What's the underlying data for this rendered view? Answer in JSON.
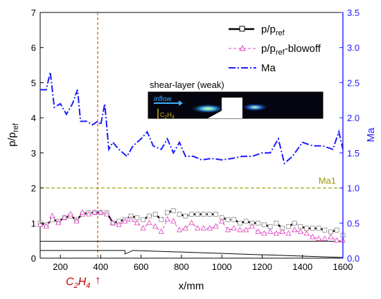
{
  "chart_data": {
    "type": "line",
    "xlabel": "x/mm",
    "ylabel_left": "p/p_ref",
    "ylabel_right": "Ma",
    "xlim": [
      100,
      1600
    ],
    "ylim_left": [
      0,
      7
    ],
    "ylim_right": [
      0,
      3.5
    ],
    "xticks": [
      200,
      400,
      600,
      800,
      1000,
      1200,
      1400,
      1600
    ],
    "yticks_left": [
      0,
      1,
      2,
      3,
      4,
      5,
      6,
      7
    ],
    "yticks_right": [
      0.0,
      0.5,
      1.0,
      1.5,
      2.0,
      2.5,
      3.0,
      3.5
    ],
    "xtick_labels": [
      "200",
      "400",
      "600",
      "800",
      "1000",
      "1200",
      "1400",
      "1600"
    ],
    "yleft_labels": [
      "0",
      "1",
      "2",
      "3",
      "4",
      "5",
      "6",
      "7"
    ],
    "yright_labels": [
      "0.0",
      "0.5",
      "1.0",
      "1.5",
      "2.0",
      "2.5",
      "3.0",
      "3.5"
    ],
    "legend": {
      "placement": "top-right",
      "entries": [
        {
          "key": "p",
          "main": "p/p",
          "sub": "ref",
          "tail": "",
          "color": "#000000"
        },
        {
          "key": "pb",
          "main": "p/p",
          "sub": "ref",
          "tail": "-blowoff",
          "color": "#e040c0"
        },
        {
          "key": "ma",
          "main": "Ma",
          "sub": "",
          "tail": "",
          "color": "#1a1aff"
        }
      ]
    },
    "series": [
      {
        "name": "p/p_ref",
        "axis": "left",
        "color": "#000000",
        "x": [
          100,
          130,
          160,
          190,
          220,
          250,
          280,
          310,
          340,
          370,
          400,
          430,
          460,
          490,
          520,
          550,
          580,
          610,
          640,
          670,
          700,
          730,
          760,
          790,
          820,
          850,
          880,
          910,
          940,
          970,
          1000,
          1030,
          1060,
          1090,
          1120,
          1150,
          1180,
          1210,
          1240,
          1270,
          1300,
          1330,
          1360,
          1390,
          1420,
          1450,
          1480,
          1510,
          1540,
          1570,
          1600
        ],
        "y": [
          1.0,
          0.95,
          1.1,
          1.05,
          1.15,
          1.2,
          1.1,
          1.25,
          1.3,
          1.3,
          1.3,
          1.3,
          1.0,
          1.05,
          1.1,
          1.2,
          1.15,
          1.1,
          1.2,
          1.25,
          1.1,
          1.3,
          1.35,
          1.25,
          1.2,
          1.25,
          1.25,
          1.25,
          1.25,
          1.25,
          1.15,
          1.1,
          1.1,
          1.0,
          1.05,
          1.0,
          1.0,
          0.95,
          0.9,
          1.0,
          0.85,
          0.9,
          1.0,
          0.9,
          0.85,
          0.85,
          0.85,
          0.8,
          0.75,
          0.8,
          0.65
        ]
      },
      {
        "name": "p/p_ref-blowoff",
        "axis": "left",
        "color": "#e040c0",
        "x": [
          100,
          130,
          160,
          190,
          220,
          250,
          280,
          310,
          340,
          370,
          400,
          430,
          460,
          490,
          520,
          550,
          580,
          610,
          640,
          670,
          700,
          730,
          760,
          790,
          820,
          850,
          880,
          910,
          940,
          970,
          1000,
          1030,
          1060,
          1090,
          1120,
          1150,
          1180,
          1210,
          1240,
          1270,
          1300,
          1330,
          1360,
          1390,
          1420,
          1450,
          1480,
          1510,
          1540,
          1570,
          1600
        ],
        "y": [
          0.95,
          0.9,
          1.2,
          1.0,
          1.15,
          1.25,
          1.05,
          1.3,
          1.25,
          1.3,
          1.3,
          1.25,
          1.0,
          0.95,
          1.05,
          1.1,
          1.0,
          0.85,
          1.0,
          0.9,
          0.75,
          1.1,
          1.05,
          0.8,
          0.85,
          1.0,
          0.85,
          0.85,
          0.85,
          0.9,
          1.05,
          0.8,
          0.85,
          0.8,
          0.8,
          0.9,
          0.75,
          0.7,
          0.75,
          0.7,
          0.75,
          0.7,
          0.8,
          0.75,
          0.7,
          0.6,
          0.55,
          0.55,
          0.6,
          0.5,
          0.5
        ]
      },
      {
        "name": "Ma",
        "axis": "right",
        "color": "#1a1aff",
        "x": [
          100,
          130,
          150,
          170,
          200,
          230,
          260,
          285,
          300,
          330,
          360,
          385,
          400,
          420,
          440,
          460,
          490,
          530,
          560,
          600,
          630,
          660,
          700,
          730,
          760,
          790,
          820,
          860,
          900,
          950,
          1000,
          1050,
          1100,
          1150,
          1200,
          1240,
          1280,
          1310,
          1350,
          1400,
          1450,
          1500,
          1550,
          1580,
          1600
        ],
        "y": [
          2.4,
          2.4,
          2.65,
          2.15,
          2.2,
          2.05,
          2.2,
          2.4,
          1.95,
          1.95,
          1.9,
          1.95,
          1.9,
          2.2,
          1.55,
          1.65,
          1.55,
          1.45,
          1.6,
          1.7,
          1.8,
          1.6,
          1.55,
          1.7,
          1.5,
          1.65,
          1.45,
          1.45,
          1.4,
          1.42,
          1.4,
          1.42,
          1.45,
          1.45,
          1.5,
          1.5,
          1.7,
          1.35,
          1.45,
          1.65,
          1.6,
          1.6,
          1.55,
          1.8,
          1.55
        ]
      }
    ],
    "reference_lines": [
      {
        "axis": "right",
        "y": 1.0,
        "label": "Ma1",
        "color": "#9a9a00"
      }
    ],
    "vertical_marker": {
      "x": 385,
      "color": "#c06000"
    },
    "annotation_bottom": {
      "main": "C",
      "sub1": "2",
      "mid": "H",
      "sub2": "4",
      "arrow": "↑"
    },
    "inset": {
      "title": "shear-layer (weak)",
      "inflow_label": "inflow",
      "injector_main": "C",
      "injector_sub1": "2",
      "injector_mid": "H",
      "injector_sub2": "4"
    },
    "geometry_lines": {
      "upper": {
        "x": [
          100,
          1600
        ],
        "y": [
          0.48,
          0.48
        ]
      },
      "lower": {
        "x": [
          100,
          520,
          520,
          560,
          1600
        ],
        "y": [
          0.22,
          0.22,
          0.12,
          0.22,
          0.02
        ]
      }
    }
  }
}
